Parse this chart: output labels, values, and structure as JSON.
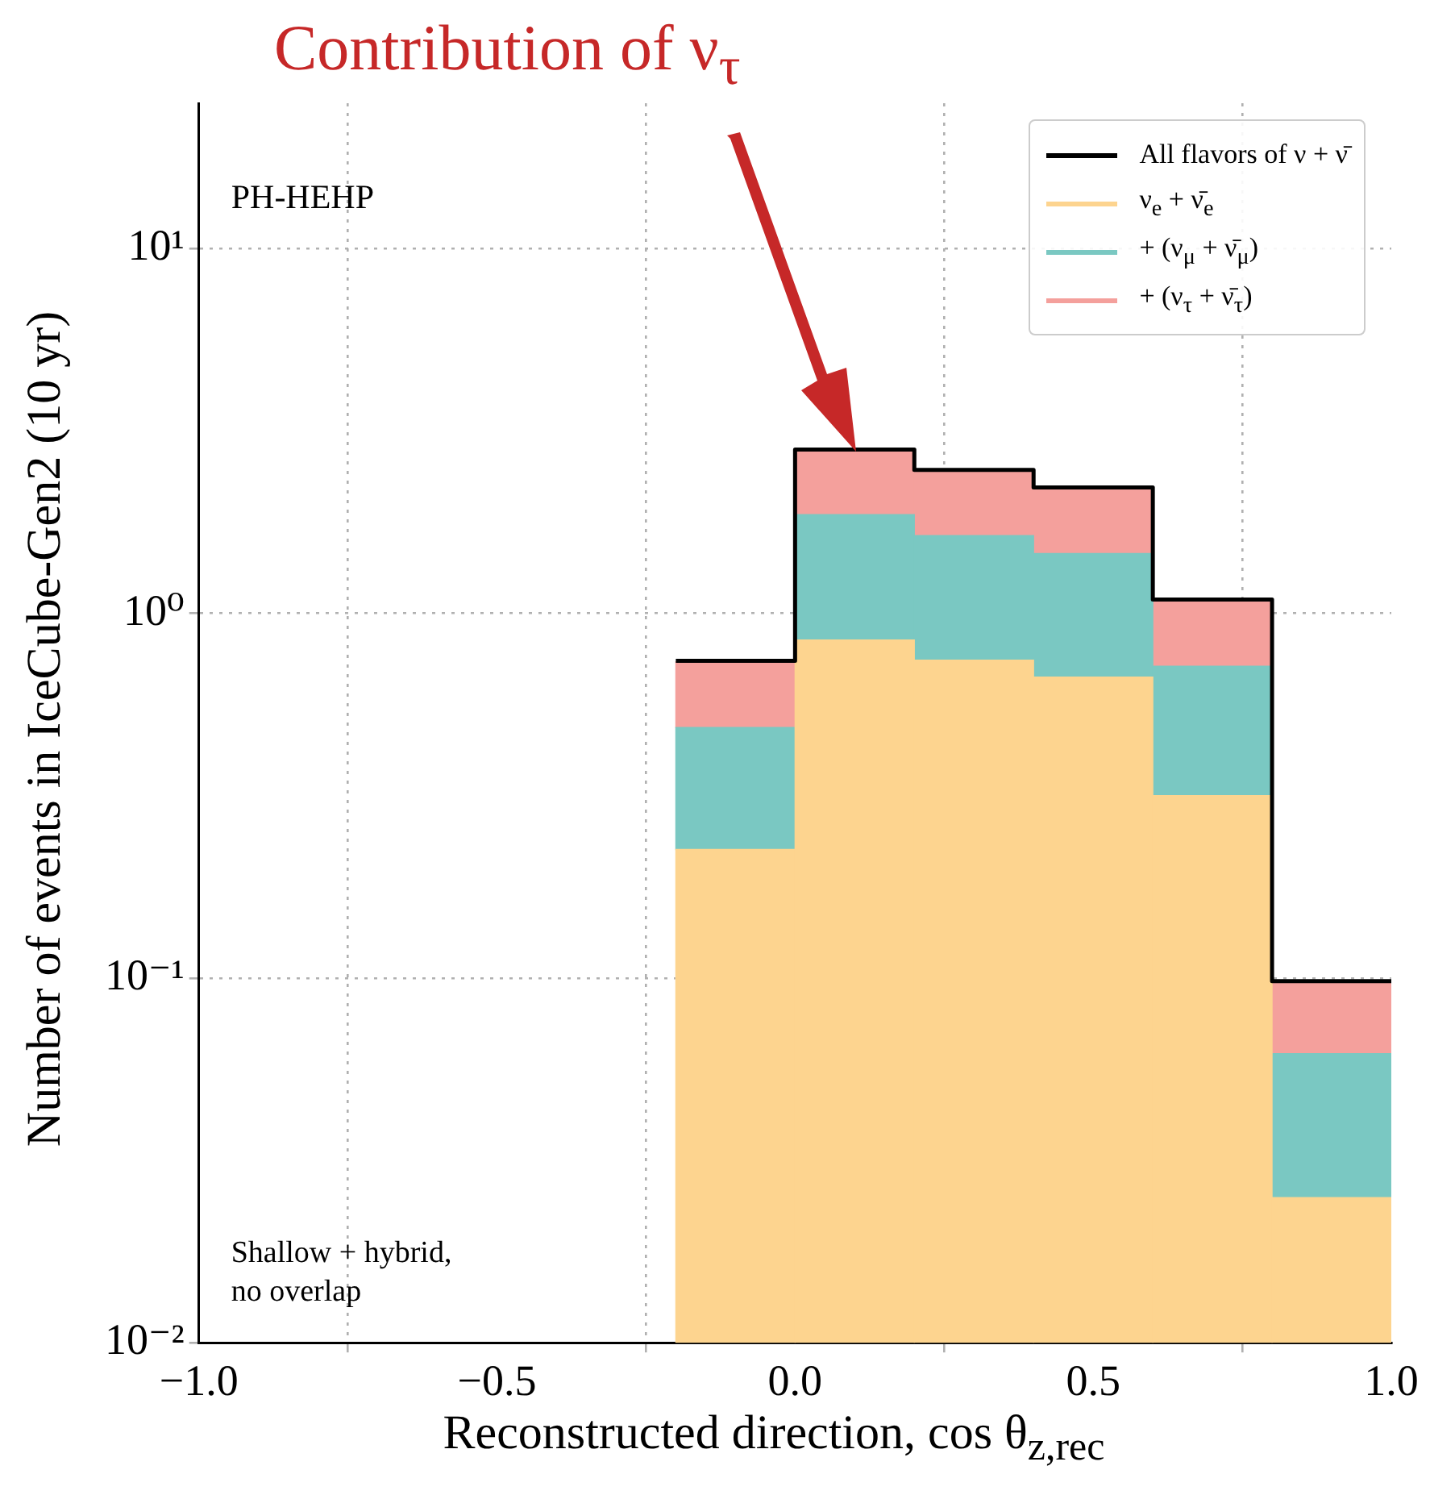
{
  "chart_data": {
    "type": "bar",
    "xlabel": "Reconstructed direction, cos θ$_{z,rec}$",
    "ylabel": "Number of events in IceCube-Gen2 (10 yr)",
    "x": [
      -0.1,
      0.1,
      0.3,
      0.5,
      0.7,
      0.9
    ],
    "stacked": true,
    "log": "y",
    "grid": true,
    "legend": "top right",
    "series": [
      {
        "name": "All flavors of ν + ν̄",
        "type": "step",
        "color": "#000000",
        "x": [
          -0.2,
          0,
          0.2,
          0.4,
          0.6,
          0.8,
          1
        ],
        "values": [
          0.74,
          2.81,
          2.47,
          2.21,
          1.09,
          0.098,
          0.098
        ]
      },
      {
        "name": "ν$_{e}$ + ν̄$_{e}$",
        "color": "#fdd48f",
        "values": [
          0.225,
          0.844,
          0.743,
          0.668,
          0.316,
          0.025
        ]
      },
      {
        "name": "+ (ν$_{μ}$ + ν̄$_{μ}$)",
        "color": "#7ac8c2",
        "values": [
          0.261,
          1.02,
          0.89,
          0.79,
          0.4,
          0.037
        ]
      },
      {
        "name": "+ (ν$_{τ}$ + ν̄$_{τ}$)",
        "color": "#f4a09c",
        "values": [
          0.25,
          0.95,
          0.84,
          0.75,
          0.37,
          0.036
        ]
      }
    ],
    "xlim": [
      -1,
      1
    ],
    "xticks": [
      {
        "value": -1,
        "label": "−1.0"
      },
      {
        "value": -0.5,
        "label": "−0.5"
      },
      {
        "value": 0,
        "label": "0.0"
      },
      {
        "value": 0.5,
        "label": "0.5"
      },
      {
        "value": 1,
        "label": "1.0"
      }
    ],
    "ylim": [
      0.01,
      25
    ],
    "yticks": [
      {
        "value": 0.01,
        "label": "10⁻²"
      },
      {
        "value": 0.1,
        "label": "10⁻¹"
      },
      {
        "value": 1,
        "label": "10⁰"
      },
      {
        "value": 10,
        "label": "10¹"
      }
    ],
    "annotations": [
      "Contribution of ν$_{τ}$",
      "PH-HEHP",
      "Shallow + hybrid,\nno overlap"
    ]
  }
}
